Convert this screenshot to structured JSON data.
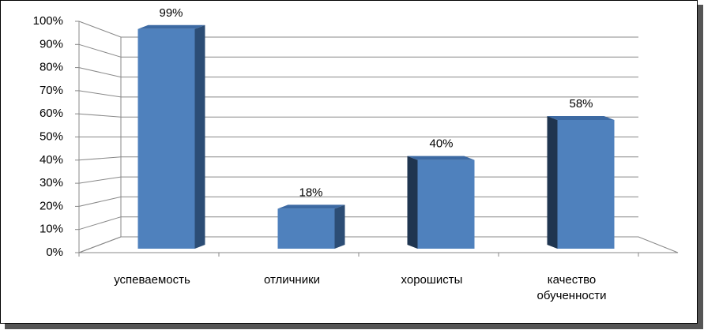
{
  "chart_data": {
    "type": "bar3d",
    "categories": [
      "успеваемость",
      "отличники",
      "хорошисты",
      "качество обученности"
    ],
    "values": [
      99,
      18,
      40,
      58
    ],
    "value_labels": [
      "99%",
      "18%",
      "40%",
      "58%"
    ],
    "color": "#4f81bd",
    "ylim": [
      0,
      100
    ],
    "yticks": [
      {
        "value": 0,
        "label": "0%"
      },
      {
        "value": 10,
        "label": "10%"
      },
      {
        "value": 20,
        "label": "20%"
      },
      {
        "value": 30,
        "label": "30%"
      },
      {
        "value": 40,
        "label": "40%"
      },
      {
        "value": 50,
        "label": "50%"
      },
      {
        "value": 60,
        "label": "60%"
      },
      {
        "value": 70,
        "label": "70%"
      },
      {
        "value": 80,
        "label": "80%"
      },
      {
        "value": 90,
        "label": "90%"
      },
      {
        "value": 100,
        "label": "100%"
      }
    ],
    "grid": true
  }
}
